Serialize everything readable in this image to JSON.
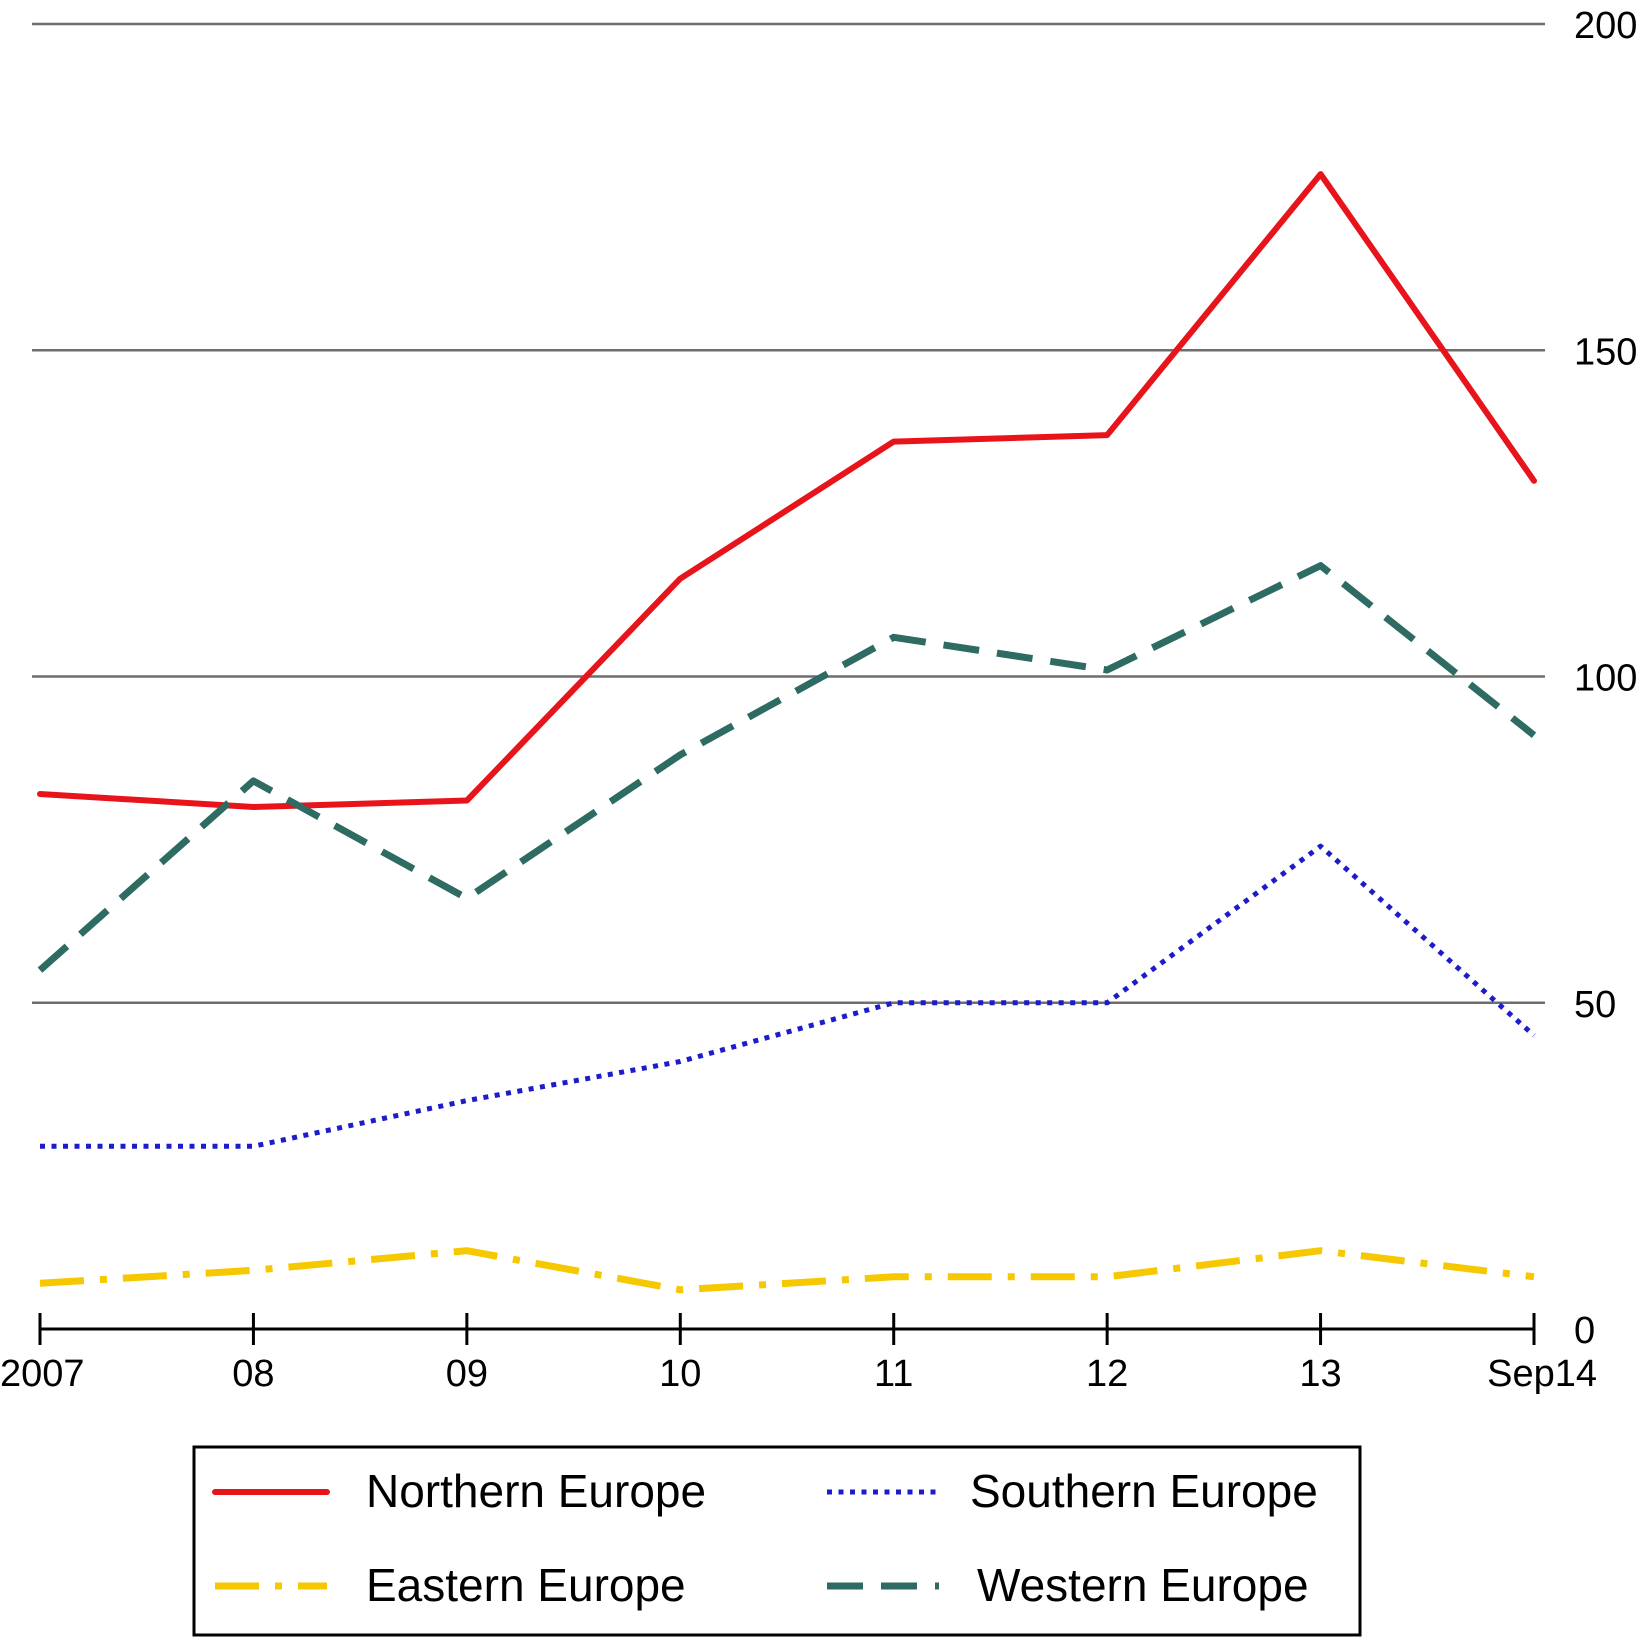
{
  "chart_data": {
    "type": "line",
    "title": "",
    "xlabel": "",
    "ylabel": "",
    "categories": [
      "2007",
      "08",
      "09",
      "10",
      "11",
      "12",
      "13",
      "Sep14"
    ],
    "ylim": [
      0,
      200
    ],
    "yticks": [
      0,
      50,
      100,
      150,
      200
    ],
    "y_axis_side": "right",
    "grid": true,
    "legend_position": "bottom",
    "series": [
      {
        "name": "Northern Europe",
        "color": "#e8141c",
        "style": "solid",
        "values": [
          82,
          80,
          81,
          115,
          136,
          137,
          177,
          130
        ]
      },
      {
        "name": "Southern Europe",
        "color": "#1c1ccc",
        "style": "dotted",
        "values": [
          28,
          28,
          35,
          41,
          50,
          50,
          74,
          45
        ]
      },
      {
        "name": "Eastern Europe",
        "color": "#f5c800",
        "style": "dash-dot",
        "values": [
          7,
          9,
          12,
          6,
          8,
          8,
          12,
          8
        ]
      },
      {
        "name": "Western Europe",
        "color": "#2e6b63",
        "style": "dashed",
        "values": [
          55,
          84,
          66,
          88,
          106,
          101,
          117,
          91
        ]
      }
    ]
  }
}
